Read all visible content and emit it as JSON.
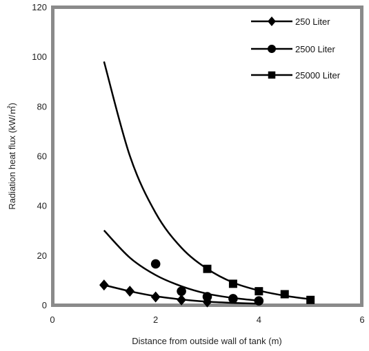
{
  "chart_data": {
    "type": "line",
    "xlabel": "Distance from outside wall of tank (m)",
    "ylabel": "Radiation heat flux (kW/㎡)",
    "xlim": [
      0,
      6
    ],
    "ylim": [
      0,
      120
    ],
    "xticks": [
      "0",
      "2",
      "4",
      "6"
    ],
    "yticks": [
      "0",
      "20",
      "40",
      "60",
      "80",
      "100",
      "120"
    ],
    "grid": false,
    "legend_position": "top-right",
    "series": [
      {
        "name": "250 Liter",
        "marker": "diamond",
        "points": [
          [
            1,
            8
          ],
          [
            1.5,
            5.5
          ],
          [
            2,
            3.2
          ],
          [
            2.5,
            2
          ],
          [
            3,
            1.2
          ]
        ],
        "curve": [
          [
            1,
            8
          ],
          [
            1.5,
            5.5
          ],
          [
            2,
            3.5
          ],
          [
            2.5,
            2.2
          ],
          [
            3,
            1.3
          ],
          [
            3.5,
            0.8
          ],
          [
            4,
            0.5
          ]
        ]
      },
      {
        "name": "2500 Liter",
        "marker": "circle",
        "points": [
          [
            2,
            16.5
          ],
          [
            2.5,
            5.5
          ],
          [
            3,
            3.3
          ],
          [
            3.5,
            2.5
          ],
          [
            4,
            1.6
          ]
        ],
        "curve": [
          [
            1,
            30
          ],
          [
            1.5,
            19
          ],
          [
            2,
            12
          ],
          [
            2.5,
            7.5
          ],
          [
            3,
            4.5
          ],
          [
            3.5,
            2.8
          ],
          [
            4,
            1.7
          ]
        ]
      },
      {
        "name": "25000 Liter",
        "marker": "square",
        "points": [
          [
            3,
            14.5
          ],
          [
            3.5,
            8.5
          ],
          [
            4,
            5.5
          ],
          [
            4.5,
            4.3
          ],
          [
            5,
            2
          ]
        ],
        "curve": [
          [
            1,
            98
          ],
          [
            1.5,
            60
          ],
          [
            2,
            37
          ],
          [
            2.5,
            23
          ],
          [
            3,
            14.5
          ],
          [
            3.5,
            9
          ],
          [
            4,
            5.8
          ],
          [
            4.5,
            3.7
          ],
          [
            5,
            2.3
          ]
        ]
      }
    ]
  }
}
